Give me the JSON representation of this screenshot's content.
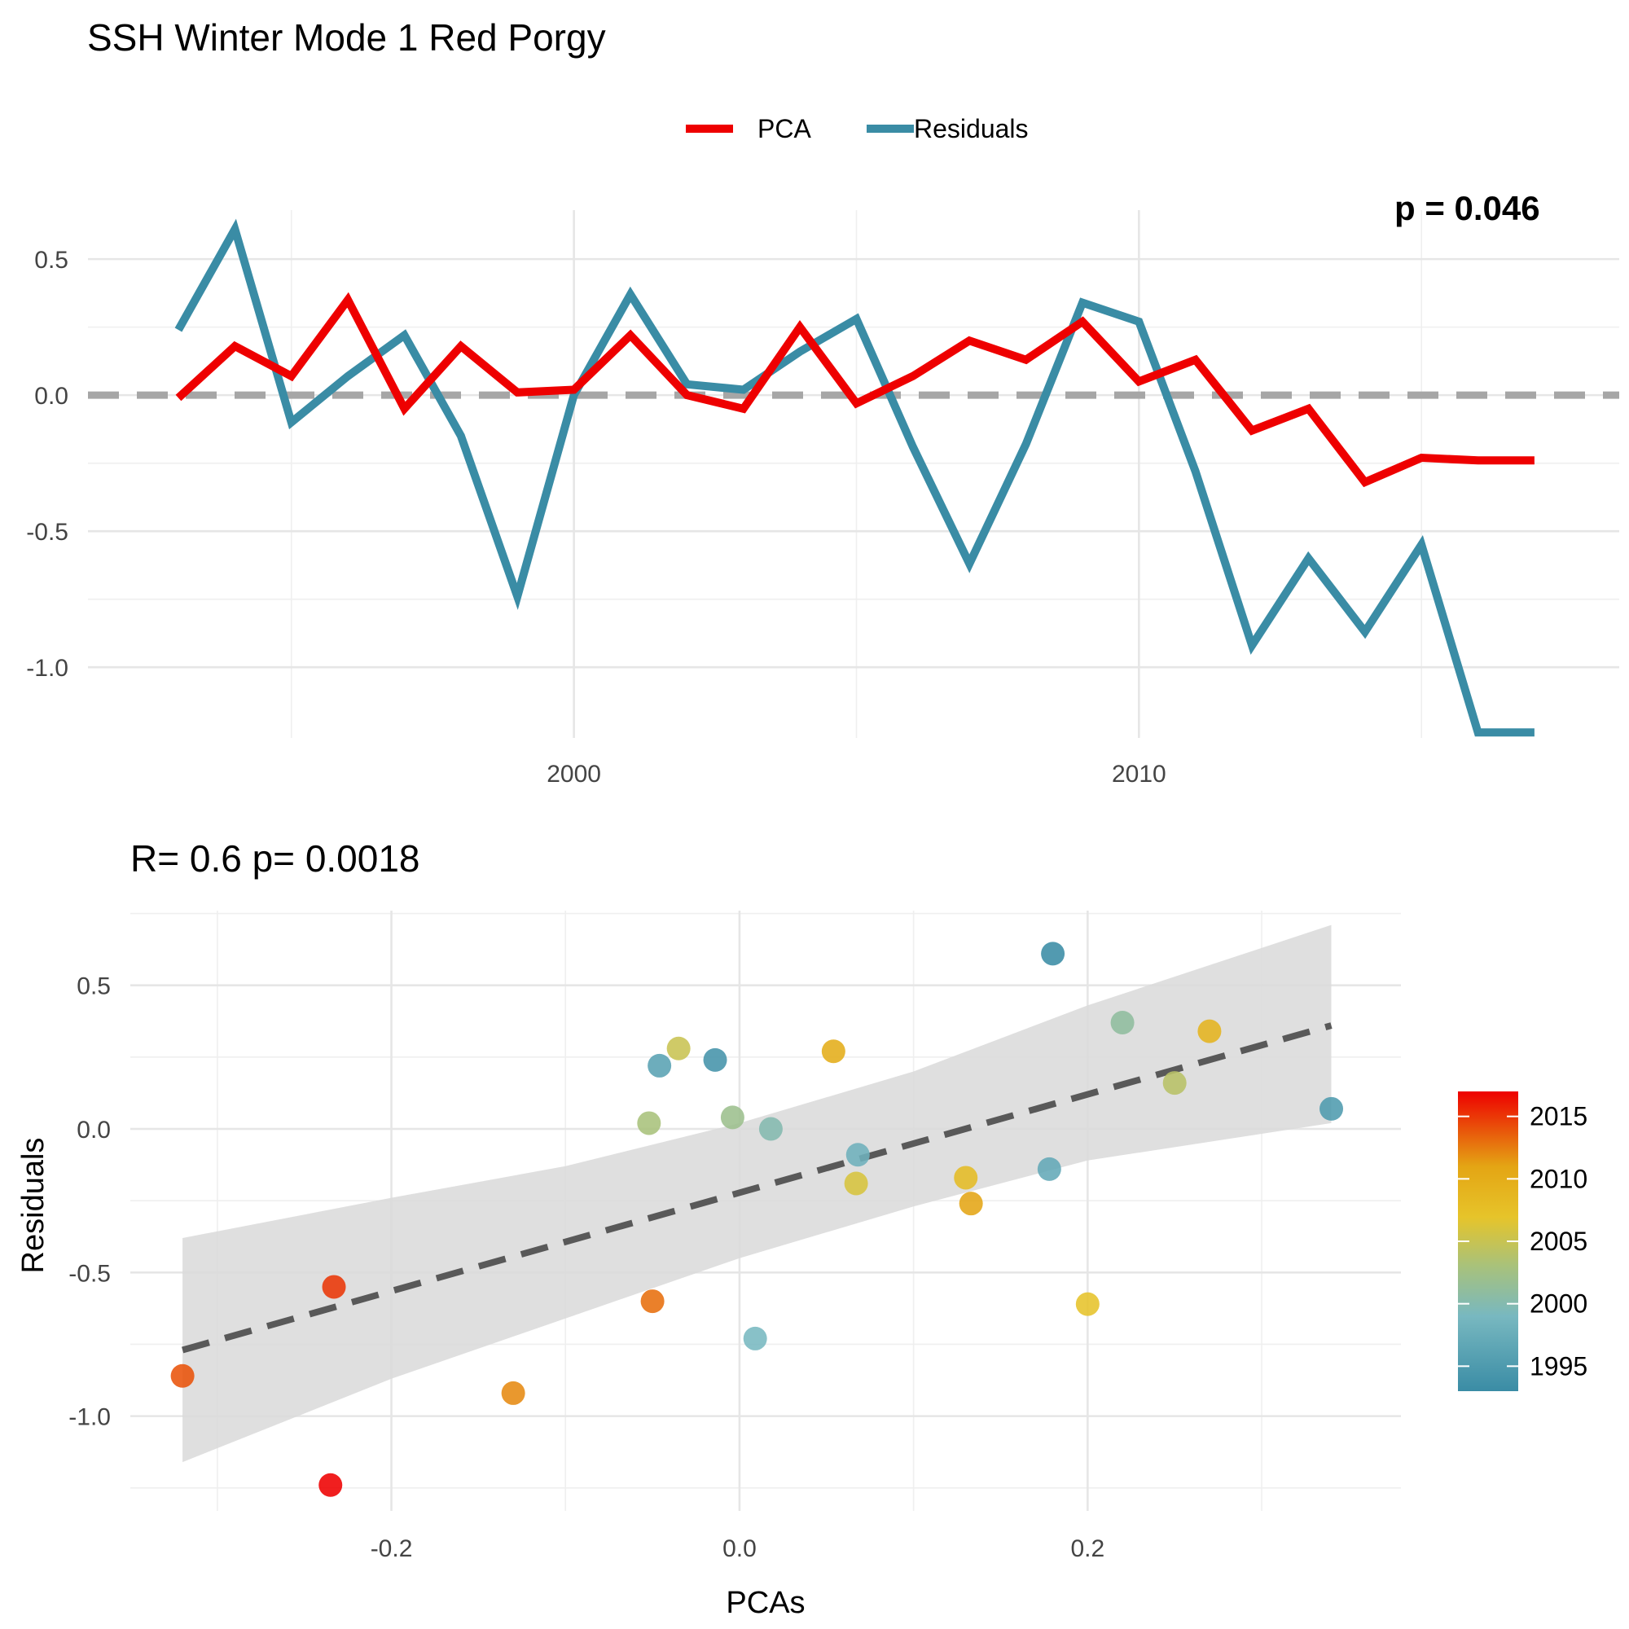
{
  "title": "SSH Winter Mode 1  Red Porgy",
  "legend": {
    "items": [
      {
        "label": "PCA",
        "color": "#ee0000"
      },
      {
        "label": "Residuals",
        "color": "#3a8ca5"
      }
    ]
  },
  "colorbar": {
    "labels": [
      "2015",
      "2010",
      "2005",
      "2000",
      "1995"
    ]
  },
  "chart_data": [
    {
      "type": "line",
      "title": "",
      "corner_text": "p = 0.046",
      "xlabel": "",
      "ylabel": "",
      "xlim": [
        1991.4,
        2018.5
      ],
      "ylim": [
        -1.26,
        0.68
      ],
      "x_ticks": [
        2000,
        2010
      ],
      "x_tick_labels": [
        "2000",
        "2010"
      ],
      "y_ticks": [
        0.5,
        0.0,
        -0.5,
        -1.0
      ],
      "y_tick_labels": [
        "0.5",
        "0.0",
        "-0.5",
        "-1.0"
      ],
      "grid": true,
      "reference_line_y": 0,
      "x": [
        1993,
        1994,
        1995,
        1996,
        1997,
        1998,
        1999,
        2000,
        2001,
        2002,
        2003,
        2004,
        2005,
        2006,
        2007,
        2008,
        2009,
        2010,
        2011,
        2012,
        2013,
        2014,
        2015,
        2016,
        2017
      ],
      "series": [
        {
          "name": "PCA",
          "color": "#ee0000",
          "values": [
            -0.01,
            0.18,
            0.07,
            0.35,
            -0.05,
            0.18,
            0.01,
            0.02,
            0.22,
            0.0,
            -0.05,
            0.25,
            -0.03,
            0.07,
            0.2,
            0.13,
            0.27,
            0.05,
            0.13,
            -0.13,
            -0.05,
            -0.32,
            -0.23,
            -0.24,
            -0.24
          ]
        },
        {
          "name": "Residuals",
          "color": "#3a8ca5",
          "values": [
            0.24,
            0.61,
            -0.1,
            0.07,
            0.22,
            -0.15,
            -0.74,
            0.0,
            0.37,
            0.04,
            0.02,
            0.16,
            0.28,
            -0.19,
            -0.62,
            -0.18,
            0.34,
            0.27,
            -0.28,
            -0.92,
            -0.6,
            -0.87,
            -0.55,
            -1.24,
            -1.24
          ]
        }
      ]
    },
    {
      "type": "scatter",
      "title": "R= 0.6  p= 0.0018",
      "xlabel": "PCAs",
      "ylabel": "Residuals",
      "xlim": [
        -0.35,
        0.38
      ],
      "ylim": [
        -1.33,
        0.76
      ],
      "x_ticks": [
        -0.2,
        0.0,
        0.2
      ],
      "x_tick_labels": [
        "-0.2",
        "0.0",
        "0.2"
      ],
      "y_ticks": [
        0.5,
        0.0,
        -0.5,
        -1.0
      ],
      "y_tick_labels": [
        "0.5",
        "0.0",
        "-0.5",
        "-1.0"
      ],
      "grid": true,
      "color_scale": {
        "variable": "year",
        "min": 1993,
        "max": 2017,
        "labels": [
          2015,
          2010,
          2005,
          2000,
          1995
        ]
      },
      "points": [
        {
          "x": 0.18,
          "y": 0.61,
          "year": 1993
        },
        {
          "x": -0.014,
          "y": 0.24,
          "year": 1994
        },
        {
          "x": 0.34,
          "y": 0.07,
          "year": 1995
        },
        {
          "x": -0.046,
          "y": 0.22,
          "year": 1996
        },
        {
          "x": 0.178,
          "y": -0.14,
          "year": 1997
        },
        {
          "x": 0.068,
          "y": -0.09,
          "year": 1998
        },
        {
          "x": 0.009,
          "y": -0.73,
          "year": 1999
        },
        {
          "x": 0.018,
          "y": 0.0,
          "year": 2000
        },
        {
          "x": 0.22,
          "y": 0.37,
          "year": 2001
        },
        {
          "x": -0.004,
          "y": 0.04,
          "year": 2002
        },
        {
          "x": -0.052,
          "y": 0.02,
          "year": 2003
        },
        {
          "x": 0.25,
          "y": 0.16,
          "year": 2004
        },
        {
          "x": -0.035,
          "y": 0.28,
          "year": 2005
        },
        {
          "x": 0.067,
          "y": -0.19,
          "year": 2006
        },
        {
          "x": 0.2,
          "y": -0.61,
          "year": 2007
        },
        {
          "x": 0.13,
          "y": -0.17,
          "year": 2008
        },
        {
          "x": 0.27,
          "y": 0.34,
          "year": 2009
        },
        {
          "x": 0.054,
          "y": 0.27,
          "year": 2010
        },
        {
          "x": 0.133,
          "y": -0.26,
          "year": 2011
        },
        {
          "x": -0.13,
          "y": -0.92,
          "year": 2012
        },
        {
          "x": -0.05,
          "y": -0.6,
          "year": 2013
        },
        {
          "x": -0.32,
          "y": -0.86,
          "year": 2014
        },
        {
          "x": -0.233,
          "y": -0.55,
          "year": 2015
        },
        {
          "x": -0.235,
          "y": -1.24,
          "year": 2017
        }
      ],
      "fit_line": {
        "x": [
          -0.32,
          0.34
        ],
        "y": [
          -0.77,
          0.36
        ]
      },
      "confidence_band": {
        "x": [
          -0.32,
          -0.2,
          -0.1,
          0.0,
          0.1,
          0.2,
          0.34
        ],
        "upper": [
          -0.38,
          -0.24,
          -0.13,
          0.02,
          0.2,
          0.43,
          0.71
        ],
        "lower": [
          -1.16,
          -0.87,
          -0.66,
          -0.45,
          -0.27,
          -0.11,
          0.02
        ]
      }
    }
  ]
}
